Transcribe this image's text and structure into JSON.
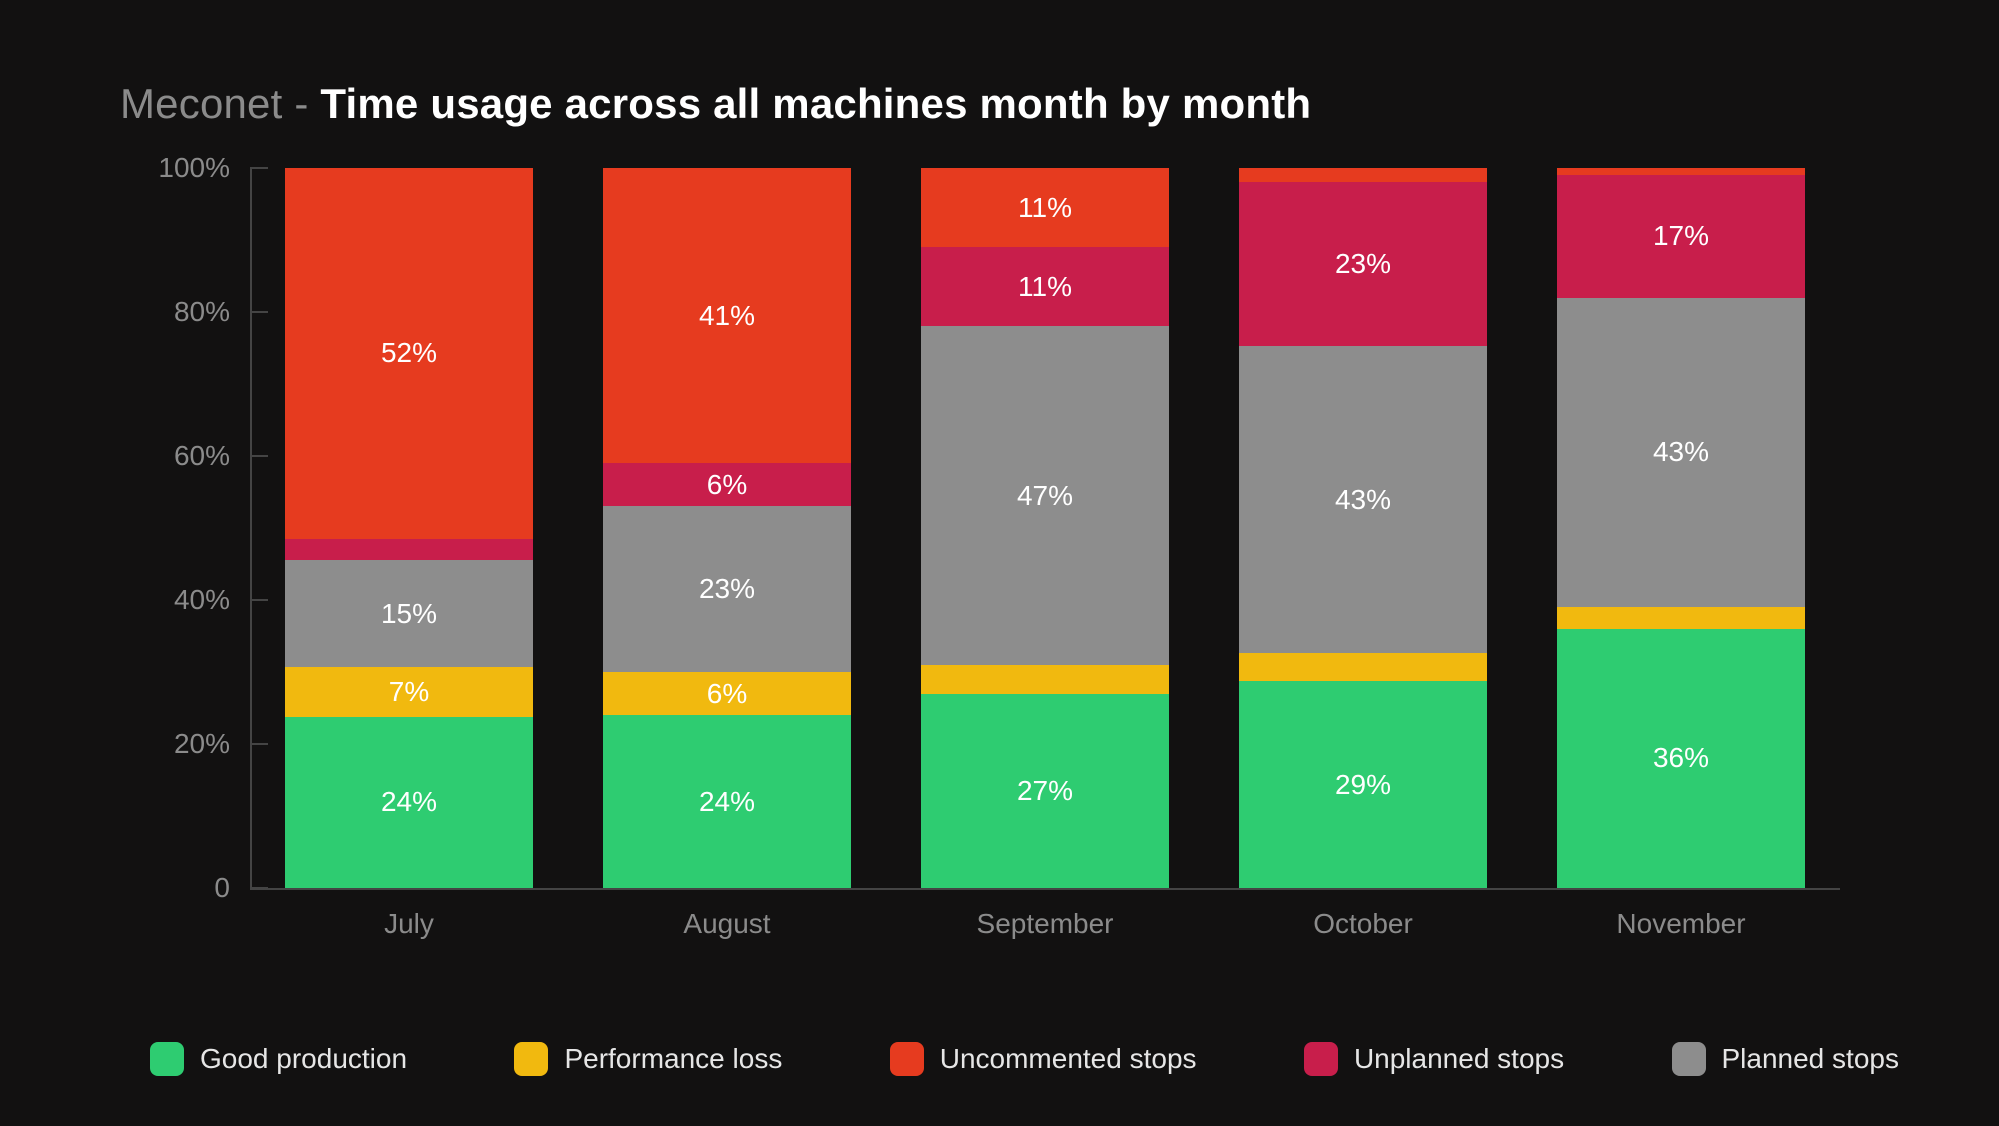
{
  "title": {
    "prefix": "Meconet - ",
    "main": "Time usage across all machines month by month",
    "prefix_color": "#8b8b8b",
    "main_color": "#ffffff",
    "fontsize": 42
  },
  "chart": {
    "type": "stacked-bar-100pct",
    "background_color": "#121111",
    "axis_color": "#444444",
    "label_color": "#8b8b8b",
    "label_fontsize": 28,
    "value_label_color": "#ffffff",
    "value_label_fontsize": 28,
    "ylim": [
      0,
      100
    ],
    "ytick_step": 20,
    "yticks": [
      {
        "value": 0,
        "label": "0"
      },
      {
        "value": 20,
        "label": "20%"
      },
      {
        "value": 40,
        "label": "40%"
      },
      {
        "value": 60,
        "label": "60%"
      },
      {
        "value": 80,
        "label": "80%"
      },
      {
        "value": 100,
        "label": "100%"
      }
    ],
    "bar_width_ratio": 0.78,
    "categories": [
      "July",
      "August",
      "September",
      "October",
      "November"
    ],
    "series": [
      {
        "key": "good_production",
        "label": "Good production",
        "color": "#2ecc71"
      },
      {
        "key": "performance_loss",
        "label": "Performance loss",
        "color": "#f1b90f"
      },
      {
        "key": "planned_stops",
        "label": "Planned stops",
        "color": "#8d8d8d"
      },
      {
        "key": "unplanned_stops",
        "label": "Unplanned stops",
        "color": "#c81e4b"
      },
      {
        "key": "uncommented_stops",
        "label": "Uncommented stops",
        "color": "#e63b1f"
      }
    ],
    "legend_order": [
      "good_production",
      "performance_loss",
      "uncommented_stops",
      "unplanned_stops",
      "planned_stops"
    ],
    "min_label_pct": 5,
    "data": [
      {
        "category": "July",
        "segments": [
          {
            "series": "good_production",
            "value": 24,
            "label": "24%"
          },
          {
            "series": "performance_loss",
            "value": 7,
            "label": "7%"
          },
          {
            "series": "planned_stops",
            "value": 15,
            "label": "15%"
          },
          {
            "series": "unplanned_stops",
            "value": 3,
            "label": ""
          },
          {
            "series": "uncommented_stops",
            "value": 52,
            "label": "52%"
          }
        ]
      },
      {
        "category": "August",
        "segments": [
          {
            "series": "good_production",
            "value": 24,
            "label": "24%"
          },
          {
            "series": "performance_loss",
            "value": 6,
            "label": "6%"
          },
          {
            "series": "planned_stops",
            "value": 23,
            "label": "23%"
          },
          {
            "series": "unplanned_stops",
            "value": 6,
            "label": "6%"
          },
          {
            "series": "uncommented_stops",
            "value": 41,
            "label": "41%"
          }
        ]
      },
      {
        "category": "September",
        "segments": [
          {
            "series": "good_production",
            "value": 27,
            "label": "27%"
          },
          {
            "series": "performance_loss",
            "value": 4,
            "label": ""
          },
          {
            "series": "planned_stops",
            "value": 47,
            "label": "47%"
          },
          {
            "series": "unplanned_stops",
            "value": 11,
            "label": "11%"
          },
          {
            "series": "uncommented_stops",
            "value": 11,
            "label": "11%"
          }
        ]
      },
      {
        "category": "October",
        "segments": [
          {
            "series": "good_production",
            "value": 29,
            "label": "29%"
          },
          {
            "series": "performance_loss",
            "value": 4,
            "label": ""
          },
          {
            "series": "planned_stops",
            "value": 43,
            "label": "43%"
          },
          {
            "series": "unplanned_stops",
            "value": 23,
            "label": "23%"
          },
          {
            "series": "uncommented_stops",
            "value": 2,
            "label": ""
          }
        ]
      },
      {
        "category": "November",
        "segments": [
          {
            "series": "good_production",
            "value": 36,
            "label": "36%"
          },
          {
            "series": "performance_loss",
            "value": 3,
            "label": ""
          },
          {
            "series": "planned_stops",
            "value": 43,
            "label": "43%"
          },
          {
            "series": "unplanned_stops",
            "value": 17,
            "label": "17%"
          },
          {
            "series": "uncommented_stops",
            "value": 1,
            "label": ""
          }
        ]
      }
    ]
  },
  "legend": {
    "swatch_radius": 8,
    "swatch_size": 34,
    "text_color": "#e6e6e6",
    "fontsize": 28
  }
}
